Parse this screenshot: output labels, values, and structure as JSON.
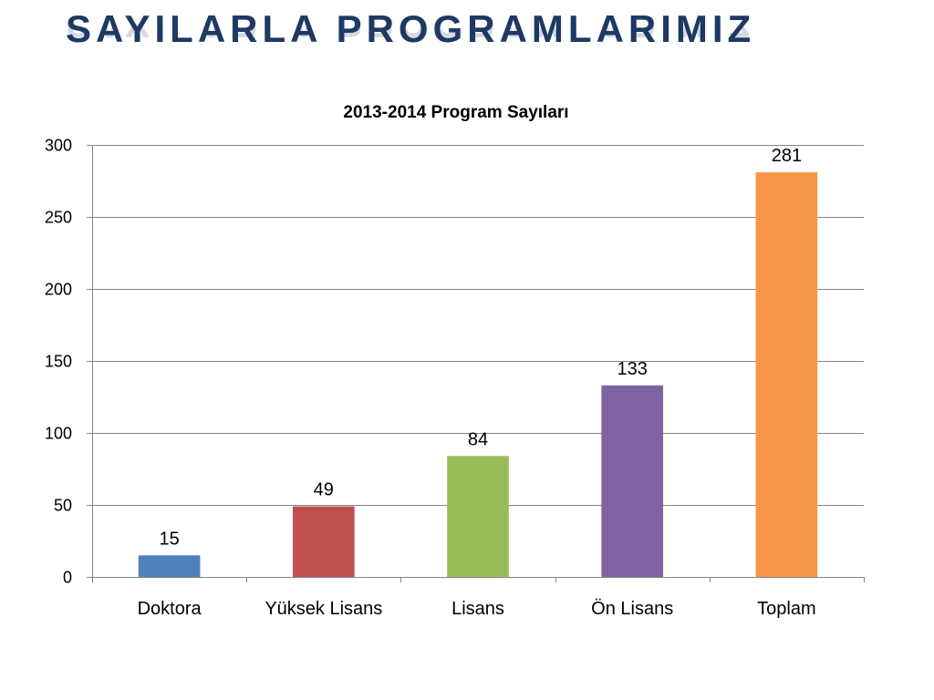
{
  "slide": {
    "title": "SAYILARLA PROGRAMLARIMIZ",
    "title_color": "#1F3864"
  },
  "chart_data": {
    "type": "bar",
    "title": "2013-2014 Program Sayıları",
    "xlabel": "",
    "ylabel": "",
    "categories": [
      "Doktora",
      "Yüksek Lisans",
      "Lisans",
      "Ön Lisans",
      "Toplam"
    ],
    "values": [
      15,
      49,
      84,
      133,
      281
    ],
    "colors": [
      "#4F81BD",
      "#C0504D",
      "#9BBB59",
      "#8064A2",
      "#F79646"
    ],
    "ylim": [
      0,
      300
    ],
    "yticks": [
      0,
      50,
      100,
      150,
      200,
      250,
      300
    ],
    "grid": true,
    "legend": "none",
    "data_labels": true
  }
}
